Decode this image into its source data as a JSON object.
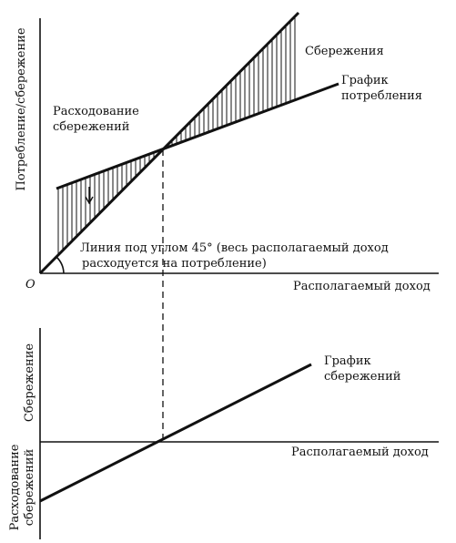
{
  "top_panel": {
    "y_axis_label": "Потребление/сбережение",
    "origin": "O",
    "x_axis_label": "Располагаемый доход",
    "savings_label": "Сбережения",
    "consumption_line_label": [
      "График",
      "потребления"
    ],
    "dissaving_label": [
      "Расходование",
      "сбережений"
    ],
    "line_45_label": [
      "Линия под углом 45° (весь располагаемый доход",
      "расходуется на потребление)"
    ]
  },
  "bottom_panel": {
    "y_axis_label_positive": "Сбережение",
    "y_axis_label_negative": [
      "Расходование",
      "сбережений"
    ],
    "x_axis_label": "Располагаемый доход",
    "saving_line_label": [
      "График",
      "сбережений"
    ]
  }
}
